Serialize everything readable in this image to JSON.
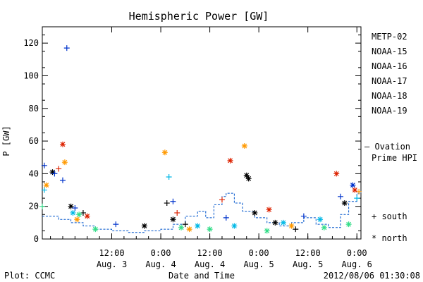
{
  "chart_data": {
    "type": "scatter",
    "title": "Hemispheric Power [GW]",
    "ylabel": "P [GW]",
    "xlabel": "Date and Time",
    "ylim": [
      0,
      130
    ],
    "yticks": [
      0,
      20,
      40,
      60,
      80,
      100,
      120
    ],
    "xlim": [
      "2012-08-02T19:00",
      "2012-08-06T01:00"
    ],
    "xticks": [
      {
        "time": "2012-08-03T12:00",
        "top": "12:00",
        "bottom": "Aug. 3"
      },
      {
        "time": "2012-08-04T00:00",
        "top": "0:00",
        "bottom": "Aug. 4"
      },
      {
        "time": "2012-08-04T12:00",
        "top": "12:00",
        "bottom": "Aug. 4"
      },
      {
        "time": "2012-08-05T00:00",
        "top": "0:00",
        "bottom": "Aug. 5"
      },
      {
        "time": "2012-08-05T12:00",
        "top": "12:00",
        "bottom": "Aug. 5"
      },
      {
        "time": "2012-08-06T00:00",
        "top": "0:00",
        "bottom": "Aug. 6"
      }
    ],
    "grid": false,
    "legend_position": "right",
    "series": [
      {
        "name": "METP-02",
        "color": "#000000",
        "points": [
          {
            "t": "2012-08-02T21:30",
            "y": 41,
            "m": "north"
          },
          {
            "t": "2012-08-03T02:00",
            "y": 20,
            "m": "north"
          },
          {
            "t": "2012-08-03T05:00",
            "y": 16,
            "m": "south"
          },
          {
            "t": "2012-08-03T20:00",
            "y": 8,
            "m": "north"
          },
          {
            "t": "2012-08-04T01:30",
            "y": 22,
            "m": "south"
          },
          {
            "t": "2012-08-04T03:00",
            "y": 12,
            "m": "north"
          },
          {
            "t": "2012-08-04T06:00",
            "y": 9,
            "m": "south"
          },
          {
            "t": "2012-08-04T21:00",
            "y": 39,
            "m": "north"
          },
          {
            "t": "2012-08-04T21:30",
            "y": 37,
            "m": "north"
          },
          {
            "t": "2012-08-04T23:00",
            "y": 16,
            "m": "north"
          },
          {
            "t": "2012-08-05T04:00",
            "y": 10,
            "m": "north"
          },
          {
            "t": "2012-08-05T09:00",
            "y": 6,
            "m": "south"
          },
          {
            "t": "2012-08-05T21:00",
            "y": 22,
            "m": "north"
          }
        ]
      },
      {
        "name": "NOAA-15",
        "color": "#0033cc",
        "points": [
          {
            "t": "2012-08-02T19:30",
            "y": 45,
            "m": "south"
          },
          {
            "t": "2012-08-02T22:00",
            "y": 40,
            "m": "south"
          },
          {
            "t": "2012-08-03T00:00",
            "y": 36,
            "m": "south"
          },
          {
            "t": "2012-08-03T01:00",
            "y": 117,
            "m": "south"
          },
          {
            "t": "2012-08-03T03:00",
            "y": 19,
            "m": "south"
          },
          {
            "t": "2012-08-03T13:00",
            "y": 9,
            "m": "south"
          },
          {
            "t": "2012-08-04T03:00",
            "y": 23,
            "m": "south"
          },
          {
            "t": "2012-08-04T16:00",
            "y": 13,
            "m": "south"
          },
          {
            "t": "2012-08-05T11:00",
            "y": 14,
            "m": "south"
          },
          {
            "t": "2012-08-05T20:00",
            "y": 26,
            "m": "south"
          },
          {
            "t": "2012-08-05T23:00",
            "y": 33,
            "m": "north"
          }
        ]
      },
      {
        "name": "NOAA-16",
        "color": "#00b8e6",
        "points": [
          {
            "t": "2012-08-02T19:30",
            "y": 30,
            "m": "south"
          },
          {
            "t": "2012-08-03T02:30",
            "y": 16,
            "m": "north"
          },
          {
            "t": "2012-08-04T02:00",
            "y": 38,
            "m": "south"
          },
          {
            "t": "2012-08-04T09:00",
            "y": 8,
            "m": "north"
          },
          {
            "t": "2012-08-04T18:00",
            "y": 8,
            "m": "north"
          },
          {
            "t": "2012-08-05T06:00",
            "y": 10,
            "m": "north"
          },
          {
            "t": "2012-08-05T15:00",
            "y": 12,
            "m": "north"
          },
          {
            "t": "2012-08-06T00:00",
            "y": 25,
            "m": "south"
          }
        ]
      },
      {
        "name": "NOAA-17",
        "color": "#33dd88",
        "points": [
          {
            "t": "2012-08-02T19:00",
            "y": 20,
            "m": "south"
          },
          {
            "t": "2012-08-03T04:00",
            "y": 15,
            "m": "north"
          },
          {
            "t": "2012-08-03T08:00",
            "y": 6,
            "m": "north"
          },
          {
            "t": "2012-08-04T05:00",
            "y": 7,
            "m": "north"
          },
          {
            "t": "2012-08-04T12:00",
            "y": 6,
            "m": "north"
          },
          {
            "t": "2012-08-05T02:00",
            "y": 5,
            "m": "north"
          },
          {
            "t": "2012-08-05T16:00",
            "y": 7,
            "m": "north"
          },
          {
            "t": "2012-08-05T22:00",
            "y": 9,
            "m": "north"
          }
        ]
      },
      {
        "name": "NOAA-18",
        "color": "#ff9900",
        "points": [
          {
            "t": "2012-08-02T20:00",
            "y": 33,
            "m": "north"
          },
          {
            "t": "2012-08-03T00:30",
            "y": 47,
            "m": "north"
          },
          {
            "t": "2012-08-03T03:30",
            "y": 12,
            "m": "north"
          },
          {
            "t": "2012-08-04T01:00",
            "y": 53,
            "m": "north"
          },
          {
            "t": "2012-08-04T07:00",
            "y": 6,
            "m": "north"
          },
          {
            "t": "2012-08-04T20:30",
            "y": 57,
            "m": "north"
          },
          {
            "t": "2012-08-05T08:00",
            "y": 8,
            "m": "north"
          },
          {
            "t": "2012-08-06T00:30",
            "y": 29,
            "m": "south"
          }
        ]
      },
      {
        "name": "NOAA-19",
        "color": "#dd2200",
        "points": [
          {
            "t": "2012-08-02T23:00",
            "y": 43,
            "m": "south"
          },
          {
            "t": "2012-08-03T00:00",
            "y": 58,
            "m": "north"
          },
          {
            "t": "2012-08-03T06:00",
            "y": 14,
            "m": "north"
          },
          {
            "t": "2012-08-04T04:00",
            "y": 16,
            "m": "south"
          },
          {
            "t": "2012-08-04T15:00",
            "y": 24,
            "m": "south"
          },
          {
            "t": "2012-08-04T17:00",
            "y": 48,
            "m": "north"
          },
          {
            "t": "2012-08-05T02:30",
            "y": 18,
            "m": "north"
          },
          {
            "t": "2012-08-05T19:00",
            "y": 40,
            "m": "north"
          },
          {
            "t": "2012-08-05T23:30",
            "y": 30,
            "m": "north"
          }
        ]
      }
    ],
    "reference_line": {
      "name": "Ovation Prime HPI",
      "color": "#0055cc",
      "points": [
        [
          "2012-08-02T19:00",
          14
        ],
        [
          "2012-08-02T23:00",
          12
        ],
        [
          "2012-08-03T02:00",
          10
        ],
        [
          "2012-08-03T05:00",
          8
        ],
        [
          "2012-08-03T08:00",
          6
        ],
        [
          "2012-08-03T12:00",
          5
        ],
        [
          "2012-08-03T16:00",
          4
        ],
        [
          "2012-08-03T20:00",
          5
        ],
        [
          "2012-08-04T00:00",
          6
        ],
        [
          "2012-08-04T03:00",
          9
        ],
        [
          "2012-08-04T06:00",
          14
        ],
        [
          "2012-08-04T09:00",
          17
        ],
        [
          "2012-08-04T11:00",
          13
        ],
        [
          "2012-08-04T13:00",
          21
        ],
        [
          "2012-08-04T15:00",
          26
        ],
        [
          "2012-08-04T16:00",
          28
        ],
        [
          "2012-08-04T18:00",
          22
        ],
        [
          "2012-08-04T20:00",
          17
        ],
        [
          "2012-08-04T23:00",
          13
        ],
        [
          "2012-08-05T02:00",
          10
        ],
        [
          "2012-08-05T05:00",
          8
        ],
        [
          "2012-08-05T08:00",
          10
        ],
        [
          "2012-08-05T11:00",
          13
        ],
        [
          "2012-08-05T14:00",
          9
        ],
        [
          "2012-08-05T17:00",
          7
        ],
        [
          "2012-08-05T20:00",
          15
        ],
        [
          "2012-08-05T22:00",
          23
        ],
        [
          "2012-08-06T00:00",
          28
        ],
        [
          "2012-08-06T01:00",
          30
        ]
      ]
    },
    "marker_legend": [
      {
        "symbol": "+",
        "label": "south"
      },
      {
        "symbol": "*",
        "label": "north"
      }
    ],
    "footer": {
      "left": "Plot: CCMC",
      "center": "Date and Time",
      "right": "2012/08/06 01:30:08"
    }
  }
}
